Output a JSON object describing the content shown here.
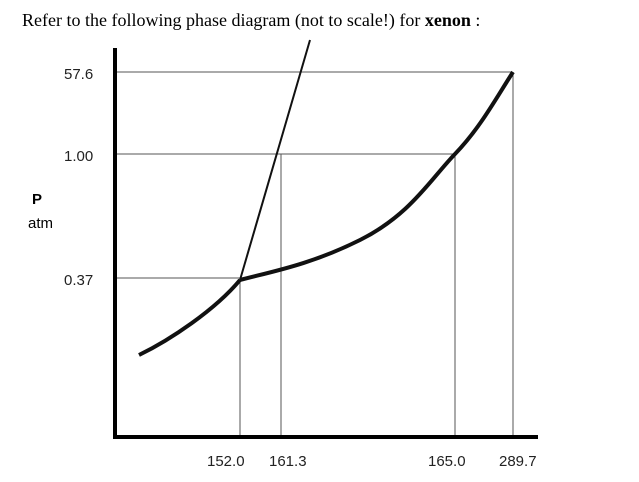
{
  "prompt": {
    "text": "Refer to the following phase diagram (not to scale!) for ",
    "substance": "xenon",
    "suffix": " :"
  },
  "chart_data": {
    "type": "line",
    "title": "",
    "xlabel": "",
    "ylabel": {
      "line1": "P",
      "line2": "atm"
    },
    "x_ticks": [
      "152.0",
      "161.3",
      "165.0",
      "289.7"
    ],
    "y_ticks": [
      "0.37",
      "1.00",
      "57.6"
    ],
    "triple_point": {
      "x": "152.0",
      "y": "0.37"
    },
    "normal_melting_point": {
      "x": "161.3",
      "y": "1.00"
    },
    "normal_boiling_point": {
      "x": "165.0",
      "y": "1.00"
    },
    "critical_point": {
      "x": "289.7",
      "y": "57.6"
    },
    "series": [
      {
        "curve": "solid-gas",
        "points": [
          [
            "<152.0",
            "<0.37"
          ],
          [
            "152.0",
            "0.37"
          ]
        ]
      },
      {
        "curve": "solid-liquid",
        "points": [
          [
            "152.0",
            "0.37"
          ],
          [
            "161.3",
            "1.00"
          ],
          [
            ">161.3",
            ">57.6"
          ]
        ]
      },
      {
        "curve": "liquid-gas",
        "points": [
          [
            "152.0",
            "0.37"
          ],
          [
            "165.0",
            "1.00"
          ],
          [
            "289.7",
            "57.6"
          ]
        ]
      }
    ],
    "grid": false,
    "note": "not to scale"
  }
}
